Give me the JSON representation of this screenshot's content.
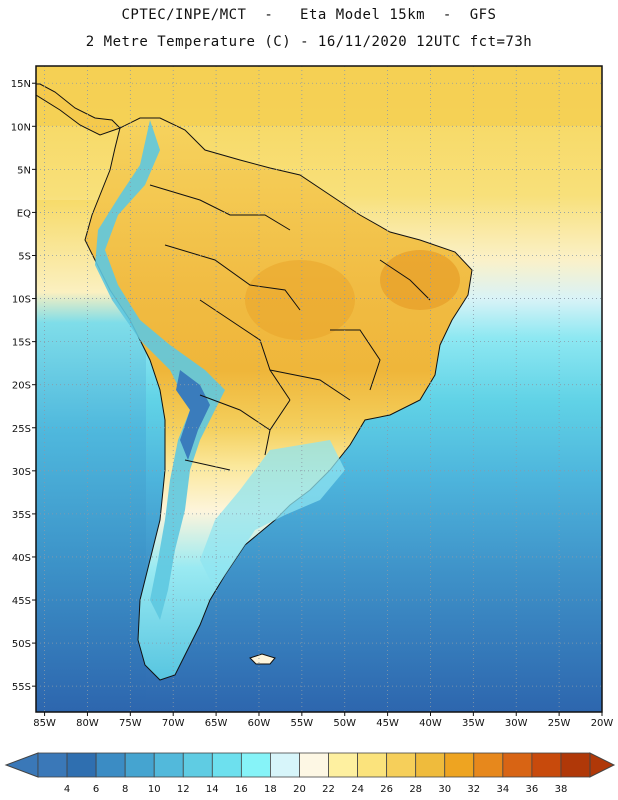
{
  "header": {
    "line1": "CPTEC/INPE/MCT  -   Eta Model 15km  -  GFS",
    "line2": "2 Metre Temperature (C) - 16/11/2020 12UTC fct=73h"
  },
  "map": {
    "lat_labels": [
      "15N",
      "10N",
      "5N",
      "EQ",
      "5S",
      "10S",
      "15S",
      "20S",
      "25S",
      "30S",
      "35S",
      "40S",
      "45S",
      "50S",
      "55S"
    ],
    "lon_labels": [
      "85W",
      "80W",
      "75W",
      "70W",
      "65W",
      "60W",
      "55W",
      "50W",
      "45W",
      "40W",
      "35W",
      "30W",
      "25W",
      "20W"
    ],
    "lat_values": [
      15,
      10,
      5,
      0,
      -5,
      -10,
      -15,
      -20,
      -25,
      -30,
      -35,
      -40,
      -45,
      -50,
      -55
    ],
    "lon_values": [
      -85,
      -80,
      -75,
      -70,
      -65,
      -60,
      -55,
      -50,
      -45,
      -40,
      -35,
      -30,
      -25,
      -20
    ],
    "lat_range": [
      -58,
      17
    ],
    "lon_range": [
      -86,
      -20
    ]
  },
  "colorbar": {
    "labels": [
      "4",
      "6",
      "8",
      "10",
      "12",
      "14",
      "16",
      "18",
      "20",
      "22",
      "24",
      "26",
      "28",
      "30",
      "32",
      "34",
      "36",
      "38"
    ],
    "colors": [
      "#3a78b8",
      "#2f6fb0",
      "#3b8cc4",
      "#45a4d0",
      "#52b9db",
      "#5fcce3",
      "#6de0ee",
      "#86f3f8",
      "#d7f5fa",
      "#fdf7e4",
      "#fef0a0",
      "#fbe37c",
      "#f6cf5a",
      "#efbb3c",
      "#eea421",
      "#e7881c",
      "#d86414",
      "#c84a0c",
      "#b03808"
    ],
    "over_color": "#b03808",
    "under_color": "#3a78b8"
  },
  "colors": {
    "ocean_deep": "#2f6db4",
    "ocean_mid": "#4aa8d6",
    "ocean_light": "#5fd2e6",
    "land_hot": "#f0b63a",
    "land_warm": "#f7d65c",
    "border": "#111111"
  }
}
